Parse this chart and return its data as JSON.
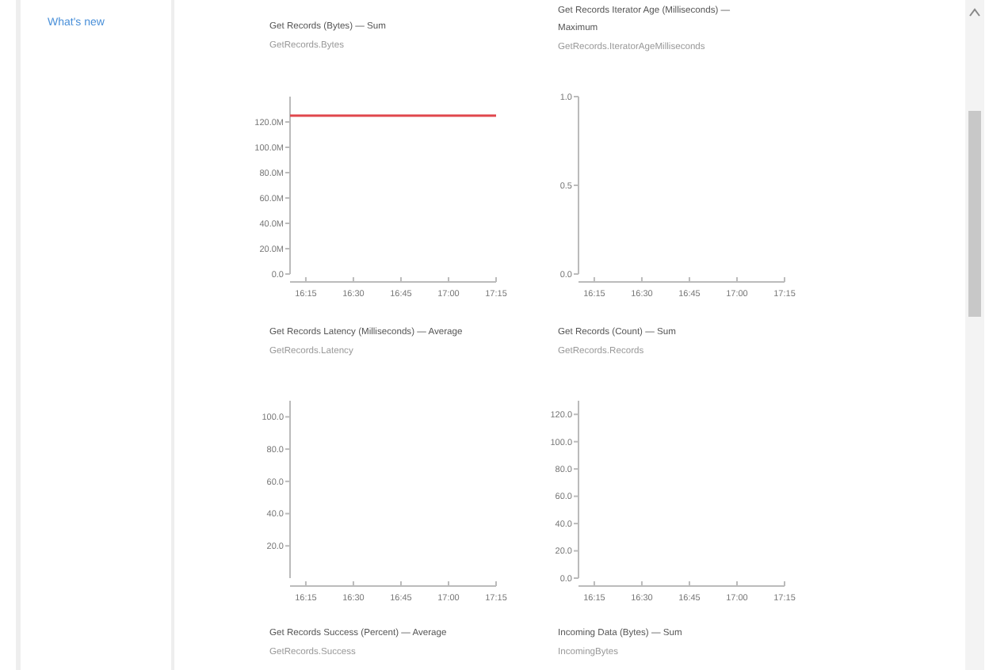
{
  "chart_data": [
    {
      "type": "other",
      "annotations": [
        "What's new"
      ]
    },
    {
      "type": "line",
      "title": "Get Records (Bytes) — Sum",
      "subtitle": "GetRecords.Bytes",
      "x": [
        16.167,
        17.25
      ],
      "xlim": [
        16.167,
        17.25
      ],
      "xticks": [
        {
          "value": 16.25,
          "label": "16:15"
        },
        {
          "value": 16.5,
          "label": "16:30"
        },
        {
          "value": 16.75,
          "label": "16:45"
        },
        {
          "value": 17,
          "label": "17:00"
        },
        {
          "value": 17.25,
          "label": "17:15"
        }
      ],
      "ylim": [
        0,
        140
      ],
      "yticks": [
        {
          "value": 0,
          "label": "0.0"
        },
        {
          "value": 20,
          "label": "20.0M"
        },
        {
          "value": 40,
          "label": "40.0M"
        },
        {
          "value": 60,
          "label": "60.0M"
        },
        {
          "value": 80,
          "label": "80.0M"
        },
        {
          "value": 100,
          "label": "100.0M"
        },
        {
          "value": 120,
          "label": "120.0M"
        }
      ],
      "marker": "none",
      "line_style": "solid",
      "series": [
        {
          "color": "#e0474c",
          "values": [
            125,
            125
          ]
        }
      ]
    },
    {
      "type": "line",
      "title": "Get Records Iterator Age (Milliseconds) — Maximum",
      "subtitle": "GetRecords.IteratorAgeMilliseconds",
      "xlim": [
        16.167,
        17.25
      ],
      "xticks": [
        {
          "value": 16.25,
          "label": "16:15"
        },
        {
          "value": 16.5,
          "label": "16:30"
        },
        {
          "value": 16.75,
          "label": "16:45"
        },
        {
          "value": 17,
          "label": "17:00"
        },
        {
          "value": 17.25,
          "label": "17:15"
        }
      ],
      "ylim": [
        0,
        1
      ],
      "yticks": [
        {
          "value": 0,
          "label": "0.0"
        },
        {
          "value": 0.5,
          "label": "0.5"
        },
        {
          "value": 1,
          "label": "1.0"
        }
      ]
    },
    {
      "type": "line",
      "title": "Get Records Latency (Milliseconds) — Average",
      "subtitle": "GetRecords.Latency",
      "xlim": [
        16.167,
        17.25
      ],
      "xticks": [
        {
          "value": 16.25,
          "label": "16:15"
        },
        {
          "value": 16.5,
          "label": "16:30"
        },
        {
          "value": 16.75,
          "label": "16:45"
        },
        {
          "value": 17,
          "label": "17:00"
        },
        {
          "value": 17.25,
          "label": "17:15"
        }
      ],
      "ylim": [
        0,
        110
      ],
      "yticks": [
        {
          "value": 20,
          "label": "20.0"
        },
        {
          "value": 40,
          "label": "40.0"
        },
        {
          "value": 60,
          "label": "60.0"
        },
        {
          "value": 80,
          "label": "80.0"
        },
        {
          "value": 100,
          "label": "100.0"
        }
      ]
    },
    {
      "type": "line",
      "title": "Get Records (Count) — Sum",
      "subtitle": "GetRecords.Records",
      "xlim": [
        16.167,
        17.25
      ],
      "xticks": [
        {
          "value": 16.25,
          "label": "16:15"
        },
        {
          "value": 16.5,
          "label": "16:30"
        },
        {
          "value": 16.75,
          "label": "16:45"
        },
        {
          "value": 17,
          "label": "17:00"
        },
        {
          "value": 17.25,
          "label": "17:15"
        }
      ],
      "ylim": [
        0,
        130
      ],
      "yticks": [
        {
          "value": 0,
          "label": "0.0"
        },
        {
          "value": 20,
          "label": "20.0"
        },
        {
          "value": 40,
          "label": "40.0"
        },
        {
          "value": 60,
          "label": "60.0"
        },
        {
          "value": 80,
          "label": "80.0"
        },
        {
          "value": 100,
          "label": "100.0"
        },
        {
          "value": 120,
          "label": "120.0"
        }
      ]
    },
    {
      "type": "other",
      "title": "Get Records Success (Percent) — Average",
      "subtitle": "GetRecords.Success"
    },
    {
      "type": "other",
      "title": "Incoming Data (Bytes) — Sum",
      "subtitle": "IncomingBytes"
    }
  ]
}
